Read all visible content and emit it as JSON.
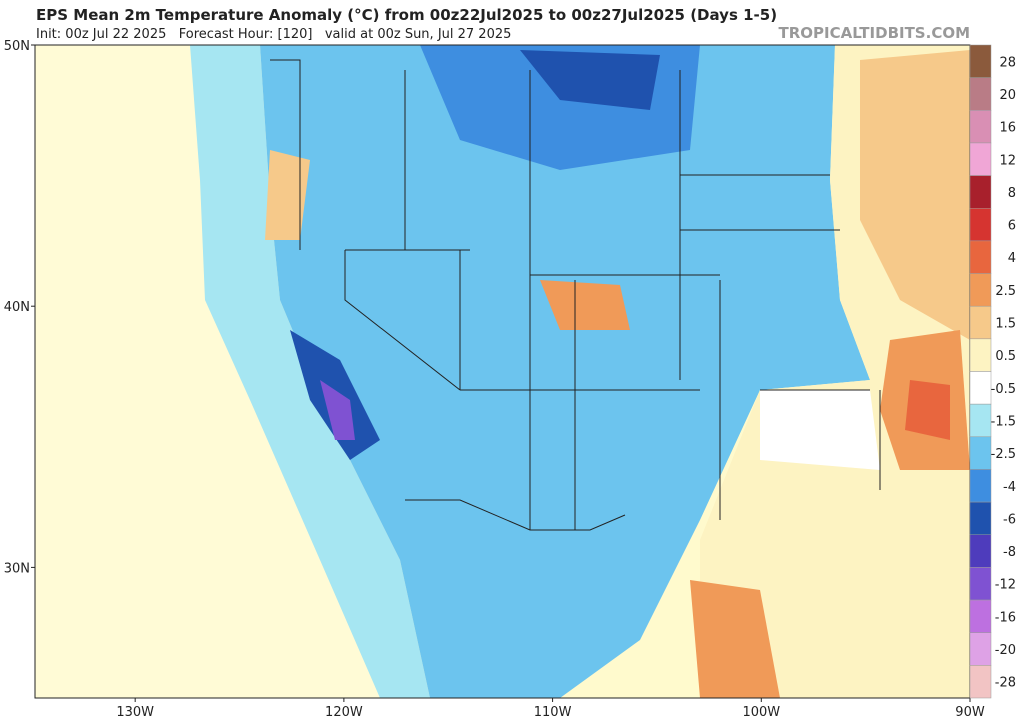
{
  "header": {
    "title": "EPS Mean 2m Temperature Anomaly (°C) from 00z22Jul2025 to 00z27Jul2025 (Days 1-5)",
    "subtitle": "Init: 00z Jul 22 2025   Forecast Hour: [120]   valid at 00z Sun, Jul 27 2025",
    "credit": "TROPICALTIDBITS.COM"
  },
  "map": {
    "lonlim": [
      -134.8,
      -90
    ],
    "latlim": [
      25,
      50
    ],
    "latticks": [
      {
        "value": 50,
        "label": "50N"
      },
      {
        "value": 40,
        "label": "40N"
      },
      {
        "value": 30,
        "label": "30N"
      }
    ],
    "lonticks": [
      {
        "value": -130,
        "label": "130W"
      },
      {
        "value": -120,
        "label": "120W"
      },
      {
        "value": -110,
        "label": "110W"
      },
      {
        "value": -100,
        "label": "100W"
      },
      {
        "value": -90,
        "label": "90W"
      }
    ]
  },
  "colorbar": {
    "levels": [
      28,
      20,
      16,
      12,
      8,
      6,
      4,
      2.5,
      1.5,
      0.5,
      -0.5,
      -1.5,
      -2.5,
      -4,
      -6,
      -8,
      -12,
      -16,
      -20,
      -28
    ],
    "colors": [
      "#8b5a3c",
      "#b97c86",
      "#d98fb4",
      "#f0a6d6",
      "#a8202c",
      "#d63430",
      "#e8663e",
      "#f09a58",
      "#f6c98a",
      "#fdf3c2",
      "#ffffff",
      "#a6e6f2",
      "#6cc4ee",
      "#3e8ee0",
      "#1f52ae",
      "#4e3cbc",
      "#7f52d2",
      "#bd70e0",
      "#dea2e6",
      "#f2c4c4"
    ]
  }
}
